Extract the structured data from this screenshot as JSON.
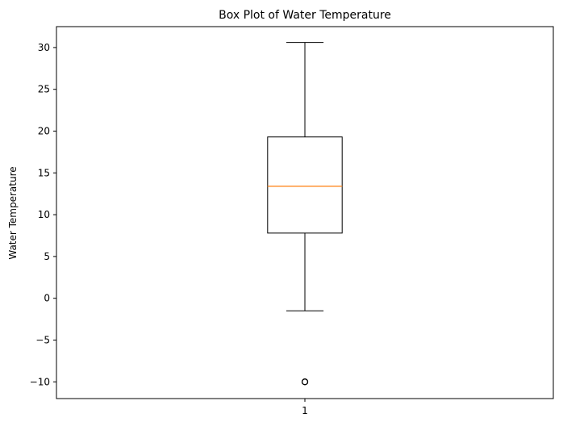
{
  "chart_data": {
    "type": "box",
    "title": "Box Plot of Water Temperature",
    "xlabel": "",
    "ylabel": "Water Temperature",
    "categories": [
      "1"
    ],
    "boxes": [
      {
        "category": "1",
        "whisker_low": -1.5,
        "q1": 7.8,
        "median": 13.4,
        "q3": 19.3,
        "whisker_high": 30.6,
        "outliers": [
          -10.0,
          -10.0
        ]
      }
    ],
    "ylim": [
      -12,
      32.5
    ],
    "yticks": [
      -10,
      -5,
      0,
      5,
      10,
      15,
      20,
      25,
      30
    ],
    "ytick_labels": [
      "−10",
      "−5",
      "0",
      "5",
      "10",
      "15",
      "20",
      "25",
      "30"
    ],
    "grid": false,
    "colors": {
      "box": "#000000",
      "median": "#ff7f0e",
      "outlier": "#000000"
    }
  }
}
